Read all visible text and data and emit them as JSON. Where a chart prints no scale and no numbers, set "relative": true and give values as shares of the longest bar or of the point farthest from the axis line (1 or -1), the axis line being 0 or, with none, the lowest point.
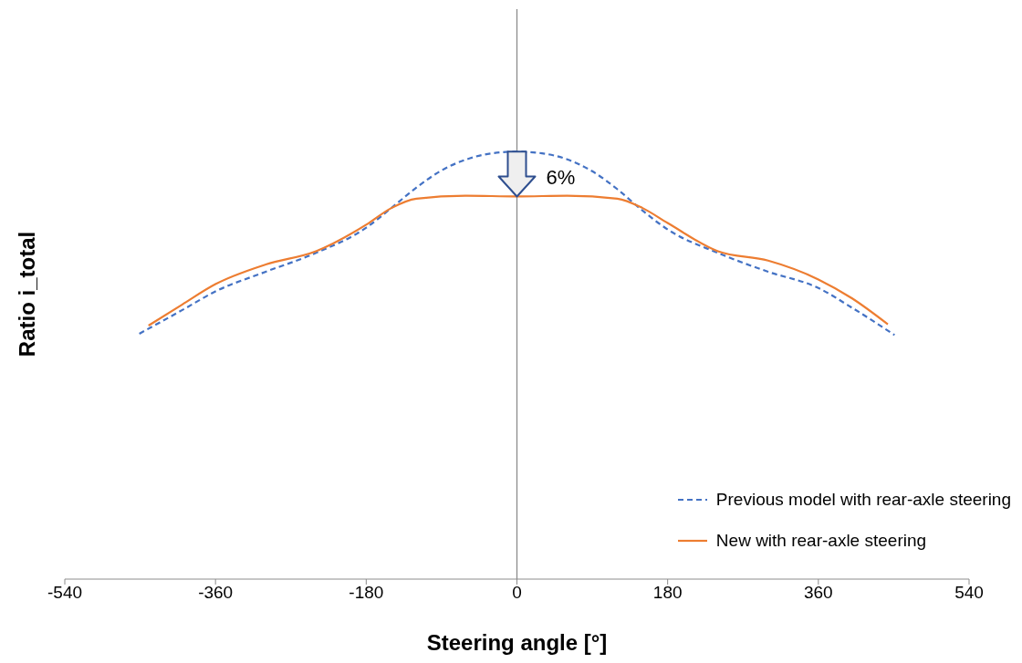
{
  "chart_data": {
    "type": "line",
    "relative": true,
    "xlabel": "Steering angle [°]",
    "ylabel": "Ratio i_total",
    "xlim": [
      -540,
      540
    ],
    "xticks": [
      -540,
      -360,
      -180,
      0,
      180,
      360,
      540
    ],
    "grid": false,
    "legend": "bottom right",
    "marker": "none",
    "ref_lines": [
      {
        "axis": "x",
        "value": 0,
        "color": "#8c8c8c"
      }
    ],
    "annotations": [
      "6%"
    ],
    "series": [
      {
        "name": "Previous model with rear-axle steering",
        "color": "#4472c4",
        "line_style": "dashed",
        "x": [
          -451,
          -400,
          -360,
          -300,
          -240,
          -180,
          -150,
          -120,
          -90,
          -60,
          -30,
          0,
          30,
          60,
          90,
          120,
          150,
          180,
          240,
          300,
          360,
          400,
          451
        ],
        "values": [
          0.574,
          0.629,
          0.673,
          0.719,
          0.763,
          0.822,
          0.868,
          0.916,
          0.956,
          0.982,
          0.996,
          1,
          0.996,
          0.982,
          0.954,
          0.912,
          0.862,
          0.818,
          0.763,
          0.719,
          0.681,
          0.635,
          0.571
        ]
      },
      {
        "name": "New with rear-axle steering",
        "color": "#ed7d31",
        "line_style": "solid",
        "x": [
          -440,
          -400,
          -360,
          -300,
          -240,
          -180,
          -150,
          -120,
          -60,
          0,
          60,
          120,
          150,
          180,
          240,
          300,
          360,
          400,
          443
        ],
        "values": [
          0.593,
          0.642,
          0.69,
          0.736,
          0.767,
          0.829,
          0.868,
          0.89,
          0.897,
          0.895,
          0.897,
          0.89,
          0.868,
          0.833,
          0.767,
          0.745,
          0.701,
          0.657,
          0.596
        ]
      }
    ]
  }
}
